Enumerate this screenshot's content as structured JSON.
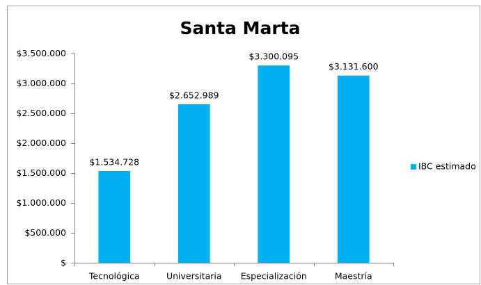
{
  "chart_data": {
    "type": "bar",
    "title": "Santa Marta",
    "categories": [
      "Tecnológica",
      "Universitaria",
      "Especialización",
      "Maestría"
    ],
    "series": [
      {
        "name": "IBC estimado",
        "color": "#00b0f0",
        "values": [
          1534728,
          2652989,
          3300095,
          3131600
        ],
        "value_labels": [
          "$1.534.728",
          "$2.652.989",
          "$3.300.095",
          "$3.131.600"
        ]
      }
    ],
    "ylim": [
      0,
      3500000
    ],
    "yticks": [
      {
        "value": 0,
        "label": "$"
      },
      {
        "value": 500000,
        "label": "$500.000"
      },
      {
        "value": 1000000,
        "label": "$1.000.000"
      },
      {
        "value": 1500000,
        "label": "$1.500.000"
      },
      {
        "value": 2000000,
        "label": "$2.000.000"
      },
      {
        "value": 2500000,
        "label": "$2.500.000"
      },
      {
        "value": 3000000,
        "label": "$3.000.000"
      },
      {
        "value": 3500000,
        "label": "$3.500.000"
      }
    ],
    "grid": false,
    "legend": "right"
  }
}
